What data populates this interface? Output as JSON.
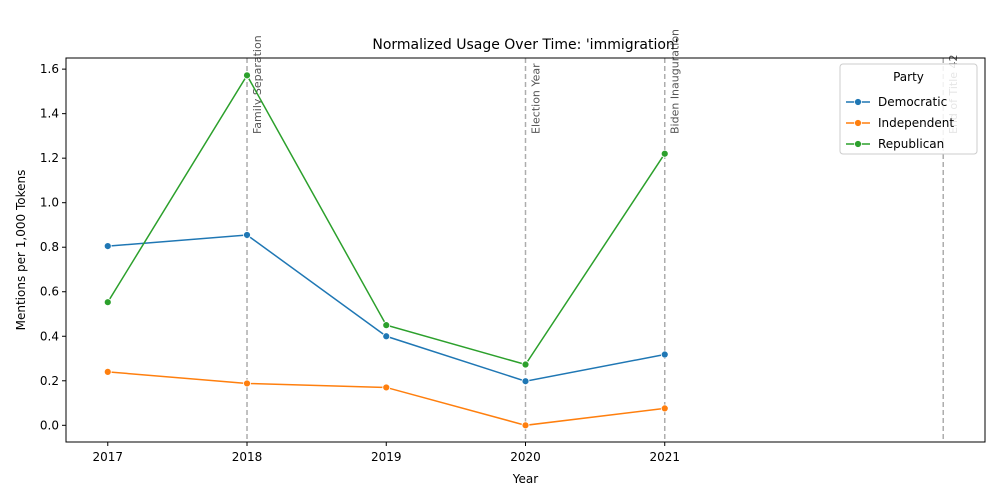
{
  "chart_data": {
    "type": "line",
    "title": "Normalized Usage Over Time: 'immigration'",
    "xlabel": "Year",
    "ylabel": "Mentions per 1,000 Tokens",
    "x": [
      2017,
      2018,
      2019,
      2020,
      2021
    ],
    "x_ticks": [
      "2017",
      "2018",
      "2019",
      "2020",
      "2021"
    ],
    "xlim": [
      2016.7,
      2023.3
    ],
    "ylim": [
      -0.075,
      1.65
    ],
    "y_ticks": [
      "0.0",
      "0.2",
      "0.4",
      "0.6",
      "0.8",
      "1.0",
      "1.2",
      "1.4",
      "1.6"
    ],
    "series": [
      {
        "name": "Democratic",
        "color": "#1f77b4",
        "values": [
          0.805,
          0.855,
          0.4,
          0.198,
          0.318
        ]
      },
      {
        "name": "Independent",
        "color": "#ff7f0e",
        "values": [
          0.24,
          0.188,
          0.17,
          0.0,
          0.076
        ]
      },
      {
        "name": "Republican",
        "color": "#2ca02c",
        "values": [
          0.553,
          1.572,
          0.45,
          0.273,
          1.22
        ]
      }
    ],
    "annotations": [
      {
        "x": 2018,
        "label": "Family Separation"
      },
      {
        "x": 2020,
        "label": "Election Year"
      },
      {
        "x": 2021,
        "label": "Biden Inauguration"
      },
      {
        "x": 2023,
        "label": "End of Title 42"
      }
    ],
    "legend": {
      "title": "Party",
      "placement": "top-right"
    },
    "grid": false
  }
}
